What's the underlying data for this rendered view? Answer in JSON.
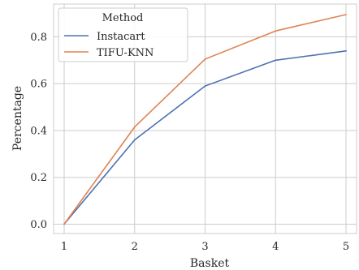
{
  "chart_data": {
    "type": "line",
    "xlabel": "Basket",
    "ylabel": "Percentage",
    "x": [
      1,
      2,
      3,
      4,
      5
    ],
    "xlim": [
      0.85,
      5.15
    ],
    "ylim": [
      -0.04,
      0.94
    ],
    "xticks": [
      "1",
      "2",
      "3",
      "4",
      "5"
    ],
    "yticks": [
      "0.0",
      "0.2",
      "0.4",
      "0.6",
      "0.8"
    ],
    "grid": true,
    "legend": {
      "title": "Method",
      "placement": "top-left"
    },
    "series": [
      {
        "name": "Instacart",
        "color": "#4c72b0",
        "values": [
          0.0,
          0.36,
          0.59,
          0.7,
          0.74
        ]
      },
      {
        "name": "TIFU-KNN",
        "color": "#dd8452",
        "values": [
          0.0,
          0.415,
          0.705,
          0.825,
          0.895
        ]
      }
    ]
  }
}
